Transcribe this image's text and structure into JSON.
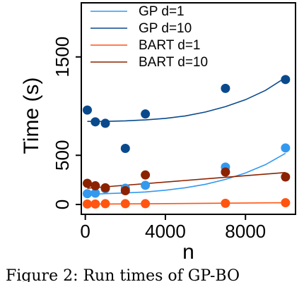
{
  "chart_data": {
    "type": "scatter",
    "xlabel": "n",
    "ylabel": "Time (s)",
    "xlim": [
      -200,
      10500
    ],
    "ylim": [
      -100,
      2050
    ],
    "x_ticks": [
      0,
      4000,
      8000
    ],
    "x_tick_labels": [
      "0",
      "4000",
      "8000"
    ],
    "y_ticks": [
      0,
      500,
      1500
    ],
    "y_tick_labels": [
      "0",
      "500",
      "1500"
    ],
    "legend_position": "top-left",
    "grid": false,
    "series": [
      {
        "name": "GP d=1",
        "color": "#3399ee",
        "points": [
          [
            100,
            110
          ],
          [
            500,
            115
          ],
          [
            1000,
            160
          ],
          [
            2000,
            165
          ],
          [
            3000,
            195
          ],
          [
            7000,
            380
          ],
          [
            10000,
            575
          ]
        ],
        "fit": [
          [
            100,
            100
          ],
          [
            1000,
            110
          ],
          [
            2000,
            117
          ],
          [
            3000,
            127
          ],
          [
            4000,
            145
          ],
          [
            5000,
            170
          ],
          [
            6000,
            205
          ],
          [
            7000,
            255
          ],
          [
            8000,
            320
          ],
          [
            9000,
            405
          ],
          [
            10000,
            520
          ]
        ]
      },
      {
        "name": "GP d=10",
        "color": "#0a4a8c",
        "points": [
          [
            100,
            960
          ],
          [
            500,
            840
          ],
          [
            1000,
            825
          ],
          [
            2000,
            570
          ],
          [
            3000,
            920
          ],
          [
            7000,
            1180
          ],
          [
            10000,
            1270
          ]
        ],
        "fit": [
          [
            100,
            845
          ],
          [
            1000,
            845
          ],
          [
            2000,
            850
          ],
          [
            3000,
            860
          ],
          [
            4000,
            875
          ],
          [
            5000,
            900
          ],
          [
            6000,
            940
          ],
          [
            7000,
            995
          ],
          [
            8000,
            1065
          ],
          [
            9000,
            1160
          ],
          [
            10000,
            1290
          ]
        ]
      },
      {
        "name": "BART d=1",
        "color": "#ff5511",
        "points": [
          [
            100,
            5
          ],
          [
            500,
            5
          ],
          [
            1000,
            8
          ],
          [
            2000,
            8
          ],
          [
            3000,
            8
          ],
          [
            7000,
            12
          ],
          [
            10000,
            18
          ]
        ],
        "fit": [
          [
            100,
            3
          ],
          [
            10000,
            18
          ]
        ]
      },
      {
        "name": "BART d=10",
        "color": "#8b2200",
        "points": [
          [
            100,
            215
          ],
          [
            500,
            190
          ],
          [
            1000,
            170
          ],
          [
            2000,
            140
          ],
          [
            3000,
            300
          ],
          [
            7000,
            330
          ],
          [
            10000,
            280
          ]
        ],
        "fit": [
          [
            100,
            165
          ],
          [
            10000,
            325
          ]
        ]
      }
    ]
  },
  "caption": "Figure 2:  Run times of GP-BO"
}
